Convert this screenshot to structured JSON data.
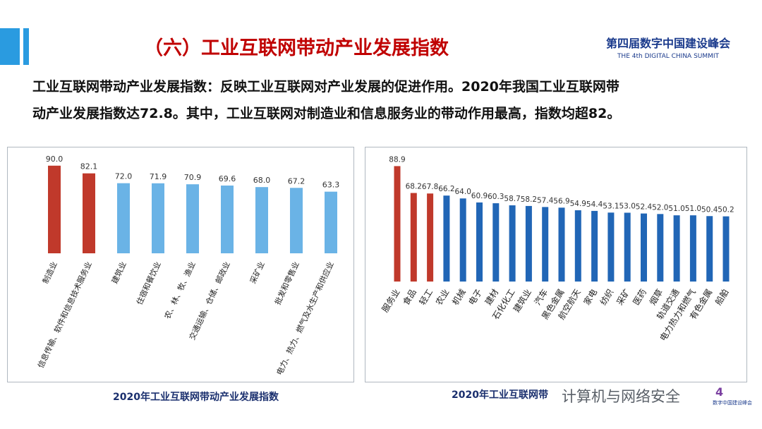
{
  "header": {
    "title": "（六）工业互联网带动产业发展指数",
    "logo_cn": "第四届数字中国建设峰会",
    "logo_en": "THE 4th DIGITAL CHINA SUMMIT"
  },
  "description": {
    "line1": "工业互联网带动产业发展指数：反映工业互联网对产业发展的促进作用。2020年我国工业互联网带",
    "line2": "动产业发展指数达72.8。其中，工业互联网对制造业和信息服务业的带动作用最高，指数均超82。"
  },
  "captions": {
    "left": "2020年工业互联网带动产业发展指数",
    "right": "2020年工业互联网带"
  },
  "watermark": "计算机与网络安全",
  "badge": {
    "mark": "4",
    "text": "数字中国建设峰会"
  },
  "colors": {
    "red": "#c0392b",
    "light_blue": "#6ab3e6",
    "dark_blue": "#2166b6",
    "title_red": "#c00000",
    "navy": "#1a2f6e"
  },
  "chart_data": [
    {
      "type": "bar",
      "title": "2020年工业互联网带动产业发展指数",
      "categories": [
        "制造业",
        "信息传输、软件和信息技术服务业",
        "建筑业",
        "住宿和餐饮业",
        "农、林、牧、渔业",
        "交通运输、仓储、邮政业",
        "采矿业",
        "批发和零售业",
        "电力、热力、燃气及水生产和供应业"
      ],
      "values": [
        90.0,
        82.1,
        72.0,
        71.9,
        70.9,
        69.6,
        68.0,
        67.2,
        63.3
      ],
      "value_labels": [
        "90.0",
        "82.1",
        "72.0",
        "71.9",
        "70.9",
        "69.6",
        "68.0",
        "67.2",
        "63.3"
      ],
      "bar_colors": [
        "#c0392b",
        "#c0392b",
        "#6ab3e6",
        "#6ab3e6",
        "#6ab3e6",
        "#6ab3e6",
        "#6ab3e6",
        "#6ab3e6",
        "#6ab3e6"
      ],
      "ylim": [
        0,
        100
      ],
      "grid": false,
      "legend": "none"
    },
    {
      "type": "bar",
      "title": "2020年工业互联网带",
      "categories": [
        "服务业",
        "食品",
        "轻工",
        "农业",
        "机械",
        "电子",
        "建材",
        "石化化工",
        "建筑业",
        "汽车",
        "黑色金属",
        "航空航天",
        "家电",
        "纺织",
        "采矿",
        "医药",
        "烟草",
        "轨道交通",
        "电力热力和燃气",
        "有色金属",
        "船舶"
      ],
      "values": [
        88.9,
        68.2,
        67.8,
        66.2,
        64.0,
        60.9,
        60.3,
        58.7,
        58.2,
        57.4,
        56.9,
        54.9,
        54.4,
        53.1,
        53.0,
        52.4,
        52.0,
        51.0,
        51.0,
        50.4,
        50.2
      ],
      "value_labels": [
        "88.9",
        "68.2",
        "67.8",
        "66.2",
        "64.0",
        "60.9",
        "60.3",
        "58.7",
        "58.2",
        "57.4",
        "56.9",
        "54.9",
        "54.4",
        "53.1",
        "53.0",
        "52.4",
        "52.0",
        "51.0",
        "51.0",
        "50.4",
        "50.2"
      ],
      "bar_colors": [
        "#c0392b",
        "#c0392b",
        "#c0392b",
        "#2166b6",
        "#2166b6",
        "#2166b6",
        "#2166b6",
        "#2166b6",
        "#2166b6",
        "#2166b6",
        "#2166b6",
        "#2166b6",
        "#2166b6",
        "#2166b6",
        "#2166b6",
        "#2166b6",
        "#2166b6",
        "#2166b6",
        "#2166b6",
        "#2166b6",
        "#2166b6"
      ],
      "ylim": [
        0,
        100
      ],
      "grid": false,
      "legend": "none"
    }
  ]
}
